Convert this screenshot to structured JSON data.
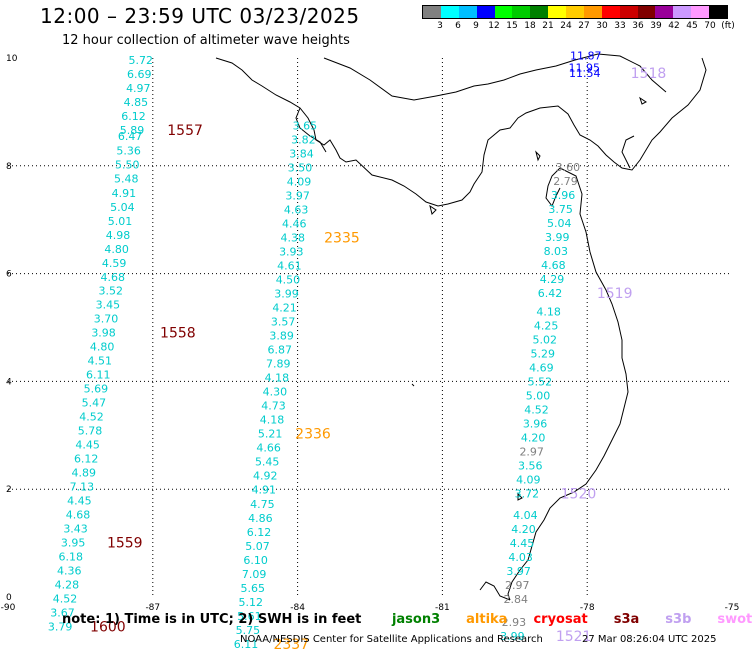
{
  "header": {
    "title": "12:00 – 23:59 UTC 03/23/2025",
    "subtitle": "12 hour collection of altimeter wave heights"
  },
  "legend": {
    "colors": [
      "#808080",
      "#00ffff",
      "#00bfff",
      "#0000ff",
      "#00ff00",
      "#00cc00",
      "#008000",
      "#ffff00",
      "#ffcc00",
      "#ff9900",
      "#ff0000",
      "#cc0000",
      "#800000",
      "#990099",
      "#cc99ff",
      "#ff99ff",
      "#000000"
    ],
    "labels": [
      "3",
      "6",
      "9",
      "12",
      "15",
      "18",
      "21",
      "24",
      "27",
      "30",
      "33",
      "36",
      "39",
      "42",
      "45",
      "70",
      "(ft)"
    ]
  },
  "axes": {
    "x_ticks": [
      "-90",
      "-87",
      "-84",
      "-81",
      "-78",
      "-75"
    ],
    "y_ticks": [
      "0",
      "2",
      "4",
      "6",
      "8",
      "10"
    ],
    "x_values": [
      -90,
      -87,
      -84,
      -81,
      -78,
      -75
    ],
    "y_values": [
      0,
      2,
      4,
      6,
      8,
      10
    ],
    "lon_range": [
      -90,
      -75
    ],
    "lat_range": [
      0,
      10
    ]
  },
  "tracks": [
    {
      "points": [
        {
          "lon": -87.25,
          "lat": 9.96,
          "v": "5.72",
          "c": "#00cccc"
        },
        {
          "lon": -87.28,
          "lat": 9.7,
          "v": "6.69",
          "c": "#00cccc"
        },
        {
          "lon": -87.3,
          "lat": 9.44,
          "v": "4.97",
          "c": "#00cccc"
        },
        {
          "lon": -87.35,
          "lat": 9.18,
          "v": "4.85",
          "c": "#00cccc"
        },
        {
          "lon": -87.4,
          "lat": 8.92,
          "v": "6.12",
          "c": "#00cccc"
        },
        {
          "lon": -87.43,
          "lat": 8.66,
          "v": "5.89",
          "c": "#00cccc"
        },
        {
          "lon": -87.47,
          "lat": 8.55,
          "v": "6.47",
          "c": "#00cccc"
        },
        {
          "lon": -87.5,
          "lat": 8.28,
          "v": "5.36",
          "c": "#00cccc"
        },
        {
          "lon": -87.53,
          "lat": 8.02,
          "v": "5.50",
          "c": "#00cccc"
        },
        {
          "lon": -87.55,
          "lat": 7.76,
          "v": "5.48",
          "c": "#00cccc"
        },
        {
          "lon": -87.6,
          "lat": 7.5,
          "v": "4.91",
          "c": "#00cccc"
        },
        {
          "lon": -87.63,
          "lat": 7.24,
          "v": "5.04",
          "c": "#00cccc"
        },
        {
          "lon": -87.68,
          "lat": 6.98,
          "v": "5.01",
          "c": "#00cccc"
        },
        {
          "lon": -87.72,
          "lat": 6.72,
          "v": "4.98",
          "c": "#00cccc"
        },
        {
          "lon": -87.75,
          "lat": 6.46,
          "v": "4.80",
          "c": "#00cccc"
        },
        {
          "lon": -87.8,
          "lat": 6.2,
          "v": "4.59",
          "c": "#00cccc"
        },
        {
          "lon": -87.83,
          "lat": 5.94,
          "v": "4.68",
          "c": "#00cccc"
        },
        {
          "lon": -87.87,
          "lat": 5.69,
          "v": "3.52",
          "c": "#00cccc"
        },
        {
          "lon": -87.93,
          "lat": 5.43,
          "v": "3.45",
          "c": "#00cccc"
        },
        {
          "lon": -87.97,
          "lat": 5.17,
          "v": "3.70",
          "c": "#00cccc"
        },
        {
          "lon": -88.02,
          "lat": 4.91,
          "v": "3.98",
          "c": "#00cccc"
        },
        {
          "lon": -88.05,
          "lat": 4.65,
          "v": "4.80",
          "c": "#00cccc"
        },
        {
          "lon": -88.1,
          "lat": 4.39,
          "v": "4.51",
          "c": "#00cccc"
        },
        {
          "lon": -88.13,
          "lat": 4.13,
          "v": "6.11",
          "c": "#00cccc"
        },
        {
          "lon": -88.18,
          "lat": 3.87,
          "v": "5.69",
          "c": "#00cccc"
        },
        {
          "lon": -88.22,
          "lat": 3.61,
          "v": "5.47",
          "c": "#00cccc"
        },
        {
          "lon": -88.27,
          "lat": 3.35,
          "v": "4.52",
          "c": "#00cccc"
        },
        {
          "lon": -88.3,
          "lat": 3.09,
          "v": "5.78",
          "c": "#00cccc"
        },
        {
          "lon": -88.35,
          "lat": 2.83,
          "v": "4.45",
          "c": "#00cccc"
        },
        {
          "lon": -88.38,
          "lat": 2.57,
          "v": "6.12",
          "c": "#00cccc"
        },
        {
          "lon": -88.43,
          "lat": 2.31,
          "v": "4.89",
          "c": "#00cccc"
        },
        {
          "lon": -88.47,
          "lat": 2.05,
          "v": "7.13",
          "c": "#00cccc"
        },
        {
          "lon": -88.52,
          "lat": 1.79,
          "v": "4.45",
          "c": "#00cccc"
        },
        {
          "lon": -88.55,
          "lat": 1.53,
          "v": "4.68",
          "c": "#00cccc"
        },
        {
          "lon": -88.6,
          "lat": 1.27,
          "v": "3.43",
          "c": "#00cccc"
        },
        {
          "lon": -88.65,
          "lat": 1.01,
          "v": "3.95",
          "c": "#00cccc"
        },
        {
          "lon": -88.7,
          "lat": 0.75,
          "v": "6.18",
          "c": "#00cccc"
        },
        {
          "lon": -88.73,
          "lat": 0.49,
          "v": "4.36",
          "c": "#00cccc"
        },
        {
          "lon": -88.78,
          "lat": 0.23,
          "v": "4.28",
          "c": "#00cccc"
        },
        {
          "lon": -88.82,
          "lat": -0.03,
          "v": "4.52",
          "c": "#00cccc"
        },
        {
          "lon": -88.87,
          "lat": -0.29,
          "v": "3.67",
          "c": "#00cccc"
        },
        {
          "lon": -88.92,
          "lat": -0.55,
          "v": "3.79",
          "c": "#00cccc"
        }
      ]
    },
    {
      "points": [
        {
          "lon": -83.85,
          "lat": 8.75,
          "v": "3.65",
          "c": "#00cccc"
        },
        {
          "lon": -83.88,
          "lat": 8.49,
          "v": "3.82",
          "c": "#00cccc"
        },
        {
          "lon": -83.92,
          "lat": 8.23,
          "v": "3.84",
          "c": "#00cccc"
        },
        {
          "lon": -83.95,
          "lat": 7.97,
          "v": "3.50",
          "c": "#00cccc"
        },
        {
          "lon": -83.97,
          "lat": 7.71,
          "v": "4.09",
          "c": "#00cccc"
        },
        {
          "lon": -84.0,
          "lat": 7.45,
          "v": "3.97",
          "c": "#00cccc"
        },
        {
          "lon": -84.03,
          "lat": 7.19,
          "v": "4.63",
          "c": "#00cccc"
        },
        {
          "lon": -84.07,
          "lat": 6.93,
          "v": "4.46",
          "c": "#00cccc"
        },
        {
          "lon": -84.1,
          "lat": 6.67,
          "v": "4.38",
          "c": "#00cccc"
        },
        {
          "lon": -84.13,
          "lat": 6.41,
          "v": "3.93",
          "c": "#00cccc"
        },
        {
          "lon": -84.17,
          "lat": 6.15,
          "v": "4.61",
          "c": "#00cccc"
        },
        {
          "lon": -84.2,
          "lat": 5.89,
          "v": "4.50",
          "c": "#00cccc"
        },
        {
          "lon": -84.23,
          "lat": 5.63,
          "v": "3.99",
          "c": "#00cccc"
        },
        {
          "lon": -84.27,
          "lat": 5.37,
          "v": "4.21",
          "c": "#00cccc"
        },
        {
          "lon": -84.3,
          "lat": 5.11,
          "v": "3.57",
          "c": "#00cccc"
        },
        {
          "lon": -84.33,
          "lat": 4.85,
          "v": "3.89",
          "c": "#00cccc"
        },
        {
          "lon": -84.37,
          "lat": 4.59,
          "v": "6.87",
          "c": "#00cccc"
        },
        {
          "lon": -84.4,
          "lat": 4.33,
          "v": "7.89",
          "c": "#00cccc"
        },
        {
          "lon": -84.43,
          "lat": 4.07,
          "v": "4.18",
          "c": "#00cccc"
        },
        {
          "lon": -84.47,
          "lat": 3.81,
          "v": "4.30",
          "c": "#00cccc"
        },
        {
          "lon": -84.5,
          "lat": 3.55,
          "v": "4.73",
          "c": "#00cccc"
        },
        {
          "lon": -84.53,
          "lat": 3.29,
          "v": "4.18",
          "c": "#00cccc"
        },
        {
          "lon": -84.57,
          "lat": 3.03,
          "v": "5.21",
          "c": "#00cccc"
        },
        {
          "lon": -84.6,
          "lat": 2.77,
          "v": "4.66",
          "c": "#00cccc"
        },
        {
          "lon": -84.63,
          "lat": 2.51,
          "v": "5.45",
          "c": "#00cccc"
        },
        {
          "lon": -84.67,
          "lat": 2.25,
          "v": "4.92",
          "c": "#00cccc"
        },
        {
          "lon": -84.7,
          "lat": 1.99,
          "v": "4.91",
          "c": "#00cccc"
        },
        {
          "lon": -84.73,
          "lat": 1.73,
          "v": "4.75",
          "c": "#00cccc"
        },
        {
          "lon": -84.77,
          "lat": 1.47,
          "v": "4.86",
          "c": "#00cccc"
        },
        {
          "lon": -84.8,
          "lat": 1.21,
          "v": "6.12",
          "c": "#00cccc"
        },
        {
          "lon": -84.83,
          "lat": 0.95,
          "v": "5.07",
          "c": "#00cccc"
        },
        {
          "lon": -84.87,
          "lat": 0.69,
          "v": "6.10",
          "c": "#00cccc"
        },
        {
          "lon": -84.9,
          "lat": 0.43,
          "v": "7.09",
          "c": "#00cccc"
        },
        {
          "lon": -84.93,
          "lat": 0.17,
          "v": "5.65",
          "c": "#00cccc"
        },
        {
          "lon": -84.97,
          "lat": -0.09,
          "v": "5.12",
          "c": "#00cccc"
        },
        {
          "lon": -85.0,
          "lat": -0.35,
          "v": "5.61",
          "c": "#00cccc"
        },
        {
          "lon": -85.03,
          "lat": -0.61,
          "v": "5.75",
          "c": "#00cccc"
        },
        {
          "lon": -85.07,
          "lat": -0.87,
          "v": "6.11",
          "c": "#00cccc"
        }
      ]
    },
    {
      "points": [
        {
          "lon": -78.03,
          "lat": 10.05,
          "v": "11.87",
          "c": "#0000ff"
        },
        {
          "lon": -78.06,
          "lat": 9.82,
          "v": "11.95",
          "c": "#0000ff"
        },
        {
          "lon": -78.05,
          "lat": 9.72,
          "v": "11.54",
          "c": "#0000ff"
        }
      ]
    },
    {
      "points": [
        {
          "lon": -78.4,
          "lat": 7.98,
          "v": "3.60",
          "c": "#808080"
        },
        {
          "lon": -78.45,
          "lat": 7.72,
          "v": "2.79",
          "c": "#808080"
        },
        {
          "lon": -78.5,
          "lat": 7.46,
          "v": "3.96",
          "c": "#00cccc"
        },
        {
          "lon": -78.55,
          "lat": 7.2,
          "v": "3.75",
          "c": "#00cccc"
        },
        {
          "lon": -78.58,
          "lat": 6.94,
          "v": "5.04",
          "c": "#00cccc"
        },
        {
          "lon": -78.62,
          "lat": 6.68,
          "v": "3.99",
          "c": "#00cccc"
        },
        {
          "lon": -78.65,
          "lat": 6.42,
          "v": "8.03",
          "c": "#00cccc"
        },
        {
          "lon": -78.7,
          "lat": 6.16,
          "v": "4.68",
          "c": "#00cccc"
        },
        {
          "lon": -78.73,
          "lat": 5.9,
          "v": "4.29",
          "c": "#00cccc"
        },
        {
          "lon": -78.77,
          "lat": 5.64,
          "v": "6.42",
          "c": "#00cccc"
        },
        {
          "lon": -78.8,
          "lat": 5.3,
          "v": "4.18",
          "c": "#00cccc"
        },
        {
          "lon": -78.85,
          "lat": 5.04,
          "v": "4.25",
          "c": "#00cccc"
        },
        {
          "lon": -78.88,
          "lat": 4.78,
          "v": "5.02",
          "c": "#00cccc"
        },
        {
          "lon": -78.92,
          "lat": 4.52,
          "v": "5.29",
          "c": "#00cccc"
        },
        {
          "lon": -78.95,
          "lat": 4.26,
          "v": "4.69",
          "c": "#00cccc"
        },
        {
          "lon": -78.98,
          "lat": 4.0,
          "v": "5.52",
          "c": "#00cccc"
        },
        {
          "lon": -79.02,
          "lat": 3.74,
          "v": "5.00",
          "c": "#00cccc"
        },
        {
          "lon": -79.05,
          "lat": 3.48,
          "v": "4.52",
          "c": "#00cccc"
        },
        {
          "lon": -79.08,
          "lat": 3.22,
          "v": "3.96",
          "c": "#00cccc"
        },
        {
          "lon": -79.12,
          "lat": 2.96,
          "v": "4.20",
          "c": "#00cccc"
        },
        {
          "lon": -79.15,
          "lat": 2.7,
          "v": "2.97",
          "c": "#808080"
        },
        {
          "lon": -79.18,
          "lat": 2.44,
          "v": "3.56",
          "c": "#00cccc"
        },
        {
          "lon": -79.22,
          "lat": 2.18,
          "v": "4.09",
          "c": "#00cccc"
        },
        {
          "lon": -79.25,
          "lat": 1.92,
          "v": "3.72",
          "c": "#00cccc"
        },
        {
          "lon": -79.28,
          "lat": 1.52,
          "v": "4.04",
          "c": "#00cccc"
        },
        {
          "lon": -79.32,
          "lat": 1.26,
          "v": "4.20",
          "c": "#00cccc"
        },
        {
          "lon": -79.35,
          "lat": 1.0,
          "v": "4.45",
          "c": "#00cccc"
        },
        {
          "lon": -79.38,
          "lat": 0.74,
          "v": "4.03",
          "c": "#00cccc"
        },
        {
          "lon": -79.42,
          "lat": 0.48,
          "v": "3.97",
          "c": "#00cccc"
        },
        {
          "lon": -79.45,
          "lat": 0.22,
          "v": "2.97",
          "c": "#808080"
        },
        {
          "lon": -79.48,
          "lat": -0.04,
          "v": "2.84",
          "c": "#808080"
        },
        {
          "lon": -79.52,
          "lat": -0.46,
          "v": "2.93",
          "c": "#808080"
        },
        {
          "lon": -79.55,
          "lat": -0.72,
          "v": "3.99",
          "c": "#00cccc"
        }
      ]
    }
  ],
  "time_labels": [
    {
      "lon": -86.7,
      "lat": 8.66,
      "t": "1557",
      "c": "#800000"
    },
    {
      "lon": -86.85,
      "lat": 4.91,
      "t": "1558",
      "c": "#800000"
    },
    {
      "lon": -87.95,
      "lat": 1.01,
      "t": "1559",
      "c": "#800000"
    },
    {
      "lon": -88.3,
      "lat": -0.55,
      "t": "1600",
      "c": "#800000"
    },
    {
      "lon": -83.45,
      "lat": 6.67,
      "t": "2335",
      "c": "#ff9900"
    },
    {
      "lon": -84.05,
      "lat": 3.03,
      "t": "2336",
      "c": "#ff9900"
    },
    {
      "lon": -84.5,
      "lat": -0.87,
      "t": "2337",
      "c": "#ff9900"
    },
    {
      "lon": -77.1,
      "lat": 9.72,
      "t": "1518",
      "c": "#c0a0f0"
    },
    {
      "lon": -77.8,
      "lat": 5.64,
      "t": "1519",
      "c": "#c0a0f0"
    },
    {
      "lon": -78.55,
      "lat": 1.92,
      "t": "1520",
      "c": "#c0a0f0"
    },
    {
      "lon": -78.65,
      "lat": -0.72,
      "t": "1521",
      "c": "#c0a0f0"
    }
  ],
  "note": {
    "prefix": "note:  1) Time is in UTC; 2) SWH is in feet",
    "missions": [
      {
        "name": "jason3",
        "color": "#008000"
      },
      {
        "name": "altika",
        "color": "#ff9900"
      },
      {
        "name": "cryosat",
        "color": "#ff0000"
      },
      {
        "name": "s3a",
        "color": "#800000"
      },
      {
        "name": "s3b",
        "color": "#c0a0f0"
      },
      {
        "name": "swot",
        "color": "#ff99ff"
      }
    ]
  },
  "footer": {
    "credit": "NOAA/NESDIS Center for Satellite Applications and Research",
    "timestamp": "27 Mar 08:26:04 UTC 2025"
  }
}
